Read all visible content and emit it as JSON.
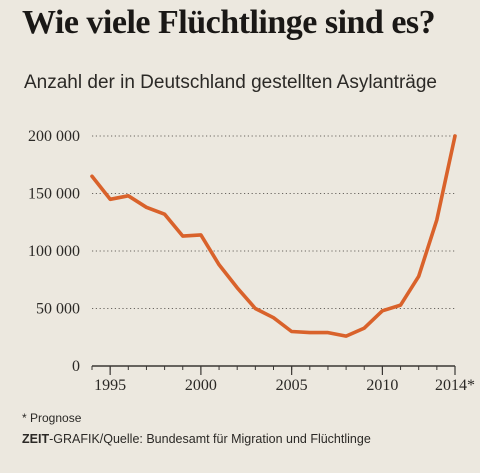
{
  "title": "Wie viele Flüchtlinge sind es?",
  "subtitle": "Anzahl der in Deutschland gestellten Asylanträge",
  "footnote": "* Prognose",
  "source": {
    "brand": "ZEIT",
    "rest": "-GRAFIK/Quelle: Bundesamt für Migration und Flüchtlinge"
  },
  "chart_data": {
    "type": "line",
    "title": "Wie viele Flüchtlinge sind es?",
    "subtitle": "Anzahl der in Deutschland gestellten Asylanträge",
    "xlabel": "",
    "ylabel": "",
    "x": [
      1994,
      1995,
      1996,
      1997,
      1998,
      1999,
      2000,
      2001,
      2002,
      2003,
      2004,
      2005,
      2006,
      2007,
      2008,
      2009,
      2010,
      2011,
      2012,
      2013,
      2014
    ],
    "series": [
      {
        "values": [
          165000,
          145000,
          148000,
          138000,
          132000,
          113000,
          114000,
          88000,
          68000,
          50000,
          42000,
          30000,
          29000,
          29000,
          26000,
          33000,
          48000,
          53000,
          78000,
          127000,
          200000
        ],
        "color": "#d9622b"
      }
    ],
    "ylim": [
      0,
      200000
    ],
    "xlim": [
      1994,
      2014
    ],
    "yticks": [
      0,
      50000,
      100000,
      150000,
      200000
    ],
    "ytick_labels": [
      "0",
      "50 000",
      "100 000",
      "150 000",
      "200 000"
    ],
    "xticks": [
      1995,
      2000,
      2005,
      2010,
      2014
    ],
    "xtick_labels": [
      "1995",
      "2000",
      "2005",
      "2010",
      "2014*"
    ],
    "grid": "dotted-horizontal",
    "colors": {
      "line": "#d9622b",
      "grid": "#6a6661",
      "axis": "#3a3734"
    }
  }
}
